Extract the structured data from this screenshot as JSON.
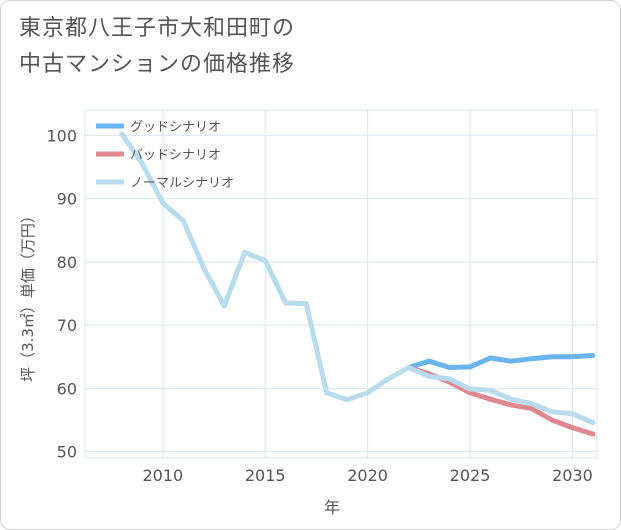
{
  "title_lines": [
    "東京都八王子市大和田町の",
    "中古マンションの価格推移"
  ],
  "chart_data": {
    "type": "line",
    "xlabel": "年",
    "ylabel": "坪（3.3㎡）単価（万円）",
    "xlim": [
      2006.2,
      2031.2
    ],
    "ylim": [
      49,
      104
    ],
    "xticks": [
      2010,
      2015,
      2020,
      2025,
      2030
    ],
    "yticks": [
      50,
      60,
      70,
      80,
      90,
      100
    ],
    "grid": true,
    "legend_position": "top-left",
    "series": [
      {
        "name": "グッドシナリオ",
        "color": "#6ab4f0",
        "x": [
          2022,
          2023,
          2024,
          2025,
          2026,
          2027,
          2028,
          2029,
          2030,
          2031
        ],
        "y": [
          63.3,
          64.3,
          63.3,
          63.4,
          64.8,
          64.3,
          64.7,
          65.0,
          65.0,
          65.2
        ]
      },
      {
        "name": "バッドシナリオ",
        "color": "#e08890",
        "x": [
          2022,
          2023,
          2024,
          2025,
          2026,
          2027,
          2028,
          2029,
          2030,
          2031
        ],
        "y": [
          63.3,
          62.3,
          61.0,
          59.3,
          58.3,
          57.4,
          56.8,
          55.0,
          53.8,
          52.8
        ]
      },
      {
        "name": "ノーマルシナリオ",
        "color": "#b8dced",
        "x": [
          2008,
          2009,
          2010,
          2011,
          2012,
          2013,
          2014,
          2015,
          2016,
          2017,
          2018,
          2019,
          2020,
          2021,
          2022,
          2023,
          2024,
          2025,
          2026,
          2027,
          2028,
          2029,
          2030,
          2031
        ],
        "y": [
          100.2,
          95.5,
          89.3,
          86.5,
          79.0,
          73.0,
          81.5,
          80.2,
          73.5,
          73.4,
          59.3,
          58.2,
          59.3,
          61.5,
          63.3,
          61.9,
          61.5,
          59.9,
          59.7,
          58.3,
          57.6,
          56.3,
          56.0,
          54.6
        ]
      }
    ]
  }
}
